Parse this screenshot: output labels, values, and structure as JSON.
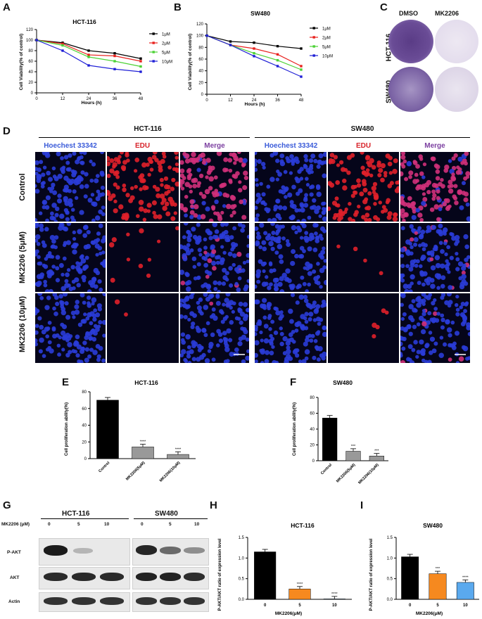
{
  "panels": {
    "A": "A",
    "B": "B",
    "C": "C",
    "D": "D",
    "E": "E",
    "F": "F",
    "G": "G",
    "H": "H",
    "I": "I"
  },
  "lineA": {
    "title": "HCT-116",
    "ylabel": "Cell Viability(% of control)",
    "xlabel": "Hours (h)",
    "xticks": [
      "0",
      "12",
      "24",
      "36",
      "48"
    ],
    "yticks": [
      "0",
      "20",
      "40",
      "60",
      "80",
      "100",
      "120"
    ],
    "legend": [
      "1μM",
      "2μM",
      "5μM",
      "10μM"
    ]
  },
  "lineB": {
    "title": "SW480",
    "ylabel": "Cell Viability(% of control)",
    "xlabel": "Hours (h)",
    "xticks": [
      "0",
      "12",
      "24",
      "36",
      "48"
    ],
    "yticks": [
      "0",
      "20",
      "40",
      "60",
      "80",
      "100",
      "120"
    ],
    "legend": [
      "1μM",
      "2μM",
      "5μM",
      "10μM"
    ]
  },
  "colony": {
    "dmso": "DMSO",
    "mk": "MK2206",
    "row1": "HCT-116",
    "row2": "SW480"
  },
  "edu": {
    "group1": "HCT-116",
    "group2": "SW480",
    "stain1": "Hoechest 33342",
    "stain2": "EDU",
    "stain3": "Merge",
    "rows": [
      "Control",
      "MK2206 (5μM)",
      "MK2206 (10μM)"
    ]
  },
  "barE": {
    "title": "HCT-116",
    "ylabel": "Cell proliferation ability(%)",
    "yticks": [
      "0",
      "20",
      "40",
      "60",
      "80"
    ],
    "categories": [
      "Control",
      "MK2206(5μM)",
      "MK2206(10μM)"
    ],
    "sig": [
      "",
      "****",
      "****"
    ]
  },
  "barF": {
    "title": "SW480",
    "ylabel": "Cell proliferation ability(%)",
    "yticks": [
      "0",
      "20",
      "40",
      "60",
      "80"
    ],
    "categories": [
      "Control",
      "MK2206(5μM)",
      "MK2206(10μM)"
    ],
    "sig": [
      "",
      "***",
      "***"
    ]
  },
  "western": {
    "dose_label": "MK2206 (μM)",
    "group1": "HCT-116",
    "group2": "SW480",
    "doses": [
      "0",
      "5",
      "10"
    ],
    "rows": [
      "P-AKT",
      "AKT",
      "Actin"
    ]
  },
  "barH": {
    "title": "HCT-116",
    "ylabel": "P-AKT/AKT ratio of expression level",
    "xlabel": "MK2206(μM)",
    "yticks": [
      "0.0",
      "0.5",
      "1.0",
      "1.5"
    ],
    "categories": [
      "0",
      "5",
      "10"
    ],
    "sig": [
      "",
      "****",
      "****"
    ]
  },
  "barI": {
    "title": "SW480",
    "ylabel": "P-AKT/AKT ratio of expression level",
    "xlabel": "MK2206(μM)",
    "yticks": [
      "0.0",
      "0.5",
      "1.0",
      "1.5"
    ],
    "categories": [
      "0",
      "5",
      "10"
    ],
    "sig": [
      "",
      "***",
      "****"
    ]
  },
  "colors": {
    "black": "#000000",
    "red": "#e8211d",
    "green": "#4cd235",
    "blue": "#1f1fd6",
    "hoechst": "#3a5bd9",
    "edu": "#d8232a",
    "merge": "#7b3fa0",
    "orange": "#f6891f",
    "lightblue": "#5aa9ee"
  },
  "chart_data": [
    {
      "type": "line",
      "title": "HCT-116",
      "xlabel": "Hours (h)",
      "ylabel": "Cell Viability(% of control)",
      "x": [
        0,
        12,
        24,
        36,
        48
      ],
      "ylim": [
        0,
        120
      ],
      "series": [
        {
          "name": "1μM",
          "values": [
            100,
            95,
            80,
            75,
            65
          ]
        },
        {
          "name": "2μM",
          "values": [
            100,
            93,
            72,
            70,
            60
          ]
        },
        {
          "name": "5μM",
          "values": [
            100,
            90,
            68,
            60,
            50
          ]
        },
        {
          "name": "10μM",
          "values": [
            100,
            80,
            52,
            45,
            40
          ]
        }
      ]
    },
    {
      "type": "line",
      "title": "SW480",
      "xlabel": "Hours (h)",
      "ylabel": "Cell Viability(% of control)",
      "x": [
        0,
        12,
        24,
        36,
        48
      ],
      "ylim": [
        0,
        120
      ],
      "series": [
        {
          "name": "1μM",
          "values": [
            100,
            90,
            88,
            82,
            78
          ]
        },
        {
          "name": "2μM",
          "values": [
            100,
            84,
            78,
            68,
            48
          ]
        },
        {
          "name": "5μM",
          "values": [
            100,
            84,
            70,
            58,
            42
          ]
        },
        {
          "name": "10μM",
          "values": [
            100,
            84,
            65,
            48,
            30
          ]
        }
      ]
    },
    {
      "type": "bar",
      "title": "HCT-116",
      "ylabel": "Cell proliferation ability(%)",
      "ylim": [
        0,
        80
      ],
      "categories": [
        "Control",
        "MK2206(5μM)",
        "MK2206(10μM)"
      ],
      "values": [
        70,
        14,
        5
      ]
    },
    {
      "type": "bar",
      "title": "SW480",
      "ylabel": "Cell proliferation ability(%)",
      "ylim": [
        0,
        80
      ],
      "categories": [
        "Control",
        "MK2206(5μM)",
        "MK2206(10μM)"
      ],
      "values": [
        54,
        12,
        6
      ]
    },
    {
      "type": "bar",
      "title": "HCT-116",
      "xlabel": "MK2206(μM)",
      "ylabel": "P-AKT/AKT ratio of expression level",
      "ylim": [
        0,
        1.5
      ],
      "categories": [
        "0",
        "5",
        "10"
      ],
      "values": [
        1.15,
        0.25,
        0.01
      ]
    },
    {
      "type": "bar",
      "title": "SW480",
      "xlabel": "MK2206(μM)",
      "ylabel": "P-AKT/AKT ratio of expression level",
      "ylim": [
        0,
        1.5
      ],
      "categories": [
        "0",
        "5",
        "10"
      ],
      "values": [
        1.03,
        0.62,
        0.41
      ]
    }
  ]
}
